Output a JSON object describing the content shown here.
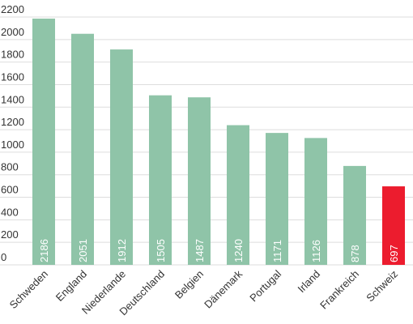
{
  "chart_data": {
    "type": "bar",
    "categories": [
      "Schweden",
      "England",
      "Niederlande",
      "Deutschland",
      "Belgien",
      "Dänemark",
      "Portugal",
      "Irland",
      "Frankreich",
      "Schweiz"
    ],
    "values": [
      2186,
      2051,
      1912,
      1505,
      1487,
      1240,
      1171,
      1126,
      878,
      697
    ],
    "colors": [
      "#8fc4a8",
      "#8fc4a8",
      "#8fc4a8",
      "#8fc4a8",
      "#8fc4a8",
      "#8fc4a8",
      "#8fc4a8",
      "#8fc4a8",
      "#8fc4a8",
      "#ec1c2e"
    ],
    "ylim": [
      0,
      2200
    ],
    "yticks": [
      0,
      200,
      400,
      600,
      800,
      1000,
      1200,
      1400,
      1600,
      1800,
      2000,
      2200
    ],
    "grid": true
  }
}
